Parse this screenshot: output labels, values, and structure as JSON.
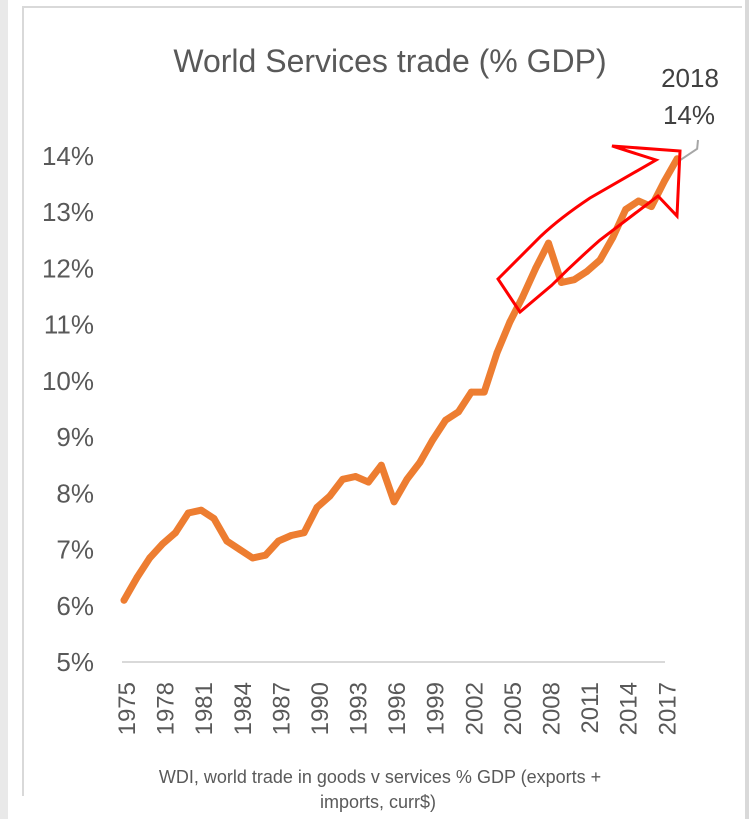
{
  "chart_data": {
    "type": "line",
    "title": "World Services trade (% GDP)",
    "source": "WDI, world trade in goods v services % GDP (exports +",
    "source_line2": "imports, curr$)",
    "ylim": [
      5,
      14
    ],
    "yticks": [
      "5%",
      "6%",
      "7%",
      "8%",
      "9%",
      "10%",
      "11%",
      "12%",
      "13%",
      "14%"
    ],
    "xticks": [
      "1975",
      "1978",
      "1981",
      "1984",
      "1987",
      "1990",
      "1993",
      "1996",
      "1999",
      "2002",
      "2005",
      "2008",
      "2011",
      "2014",
      "2017"
    ],
    "x": [
      1975,
      1976,
      1977,
      1978,
      1979,
      1980,
      1981,
      1982,
      1983,
      1984,
      1985,
      1986,
      1987,
      1988,
      1989,
      1990,
      1991,
      1992,
      1993,
      1994,
      1995,
      1996,
      1997,
      1998,
      1999,
      2000,
      2001,
      2002,
      2003,
      2004,
      2005,
      2006,
      2007,
      2008,
      2009,
      2010,
      2011,
      2012,
      2013,
      2014,
      2015,
      2016,
      2017,
      2018
    ],
    "series": [
      {
        "values": [
          6.1,
          6.5,
          6.85,
          7.1,
          7.3,
          7.65,
          7.7,
          7.55,
          7.15,
          7.0,
          6.85,
          6.9,
          7.15,
          7.25,
          7.3,
          7.75,
          7.95,
          8.25,
          8.3,
          8.2,
          8.5,
          7.85,
          8.25,
          8.55,
          8.95,
          9.3,
          9.45,
          9.8,
          9.8,
          10.5,
          11.05,
          11.5,
          12.0,
          12.45,
          11.75,
          11.8,
          11.95,
          12.15,
          12.55,
          13.05,
          13.2,
          13.1,
          13.55,
          13.95
        ],
        "color": "#ed7d31"
      }
    ],
    "trend_color": "#a6a6a6",
    "arrow_color": "#ff0000",
    "annotation": {
      "year": "2018",
      "value": "14%"
    },
    "grid": false
  }
}
